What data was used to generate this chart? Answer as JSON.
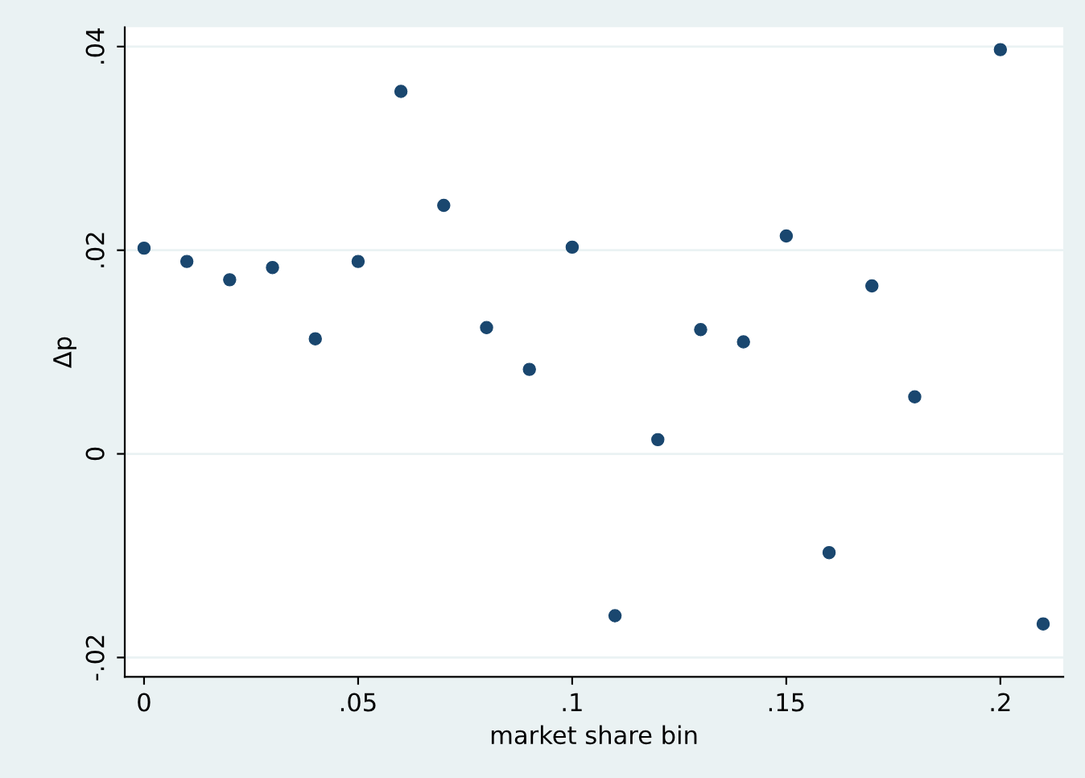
{
  "chart_data": {
    "type": "scatter",
    "xlabel": "market share bin",
    "ylabel": "Δp",
    "x": [
      0,
      0.01,
      0.02,
      0.03,
      0.04,
      0.05,
      0.06,
      0.07,
      0.08,
      0.09,
      0.1,
      0.11,
      0.12,
      0.13,
      0.14,
      0.15,
      0.16,
      0.17,
      0.18,
      0.2,
      0.21
    ],
    "series": [
      {
        "color": "#1a476f",
        "values": [
          0.0202,
          0.0189,
          0.0171,
          0.0183,
          0.0113,
          0.0189,
          0.0356,
          0.0244,
          0.0124,
          0.0083,
          0.0203,
          -0.0159,
          0.0014,
          0.0122,
          0.011,
          0.0214,
          -0.0097,
          0.0165,
          0.0056,
          0.0397,
          -0.0167
        ]
      }
    ],
    "xlim": [
      -0.0045,
      0.2147
    ],
    "ylim": [
      -0.0219,
      0.0419
    ],
    "xticks": [
      {
        "value": 0,
        "label": "0"
      },
      {
        "value": 0.05,
        "label": ".05"
      },
      {
        "value": 0.1,
        "label": ".1"
      },
      {
        "value": 0.15,
        "label": ".15"
      },
      {
        "value": 0.2,
        "label": ".2"
      }
    ],
    "yticks": [
      {
        "value": -0.02,
        "label": "-.02"
      },
      {
        "value": 0,
        "label": "0"
      },
      {
        "value": 0.02,
        "label": ".02"
      },
      {
        "value": 0.04,
        "label": ".04"
      }
    ],
    "grid": "y",
    "marker": "circle",
    "legend": false
  }
}
